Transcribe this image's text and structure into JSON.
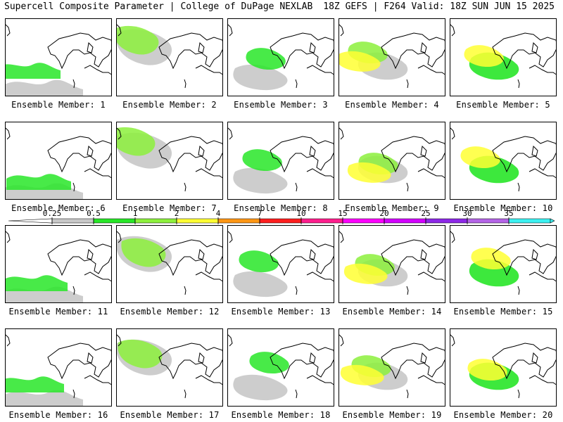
{
  "header": {
    "left": "Supercell Composite Parameter | College of DuPage NEXLAB",
    "right": "18Z GEFS | F264 Valid: 18Z SUN JUN 15 2025"
  },
  "panels": [
    {
      "label": "Ensemble Member: 1"
    },
    {
      "label": "Ensemble Member: 2"
    },
    {
      "label": "Ensemble Member: 3"
    },
    {
      "label": "Ensemble Member: 4"
    },
    {
      "label": "Ensemble Member: 5"
    },
    {
      "label": "Ensemble Member: 6"
    },
    {
      "label": "Ensemble Member: 7"
    },
    {
      "label": "Ensemble Member: 8"
    },
    {
      "label": "Ensemble Member: 9"
    },
    {
      "label": "Ensemble Member: 10"
    },
    {
      "label": "Ensemble Member: 11"
    },
    {
      "label": "Ensemble Member: 12"
    },
    {
      "label": "Ensemble Member: 13"
    },
    {
      "label": "Ensemble Member: 14"
    },
    {
      "label": "Ensemble Member: 15"
    },
    {
      "label": "Ensemble Member: 16"
    },
    {
      "label": "Ensemble Member: 17"
    },
    {
      "label": "Ensemble Member: 18"
    },
    {
      "label": "Ensemble Member: 19"
    },
    {
      "label": "Ensemble Member: 20"
    }
  ],
  "colorbar": {
    "ticks": [
      "0.25",
      "0.5",
      "1",
      "2",
      "4",
      "7",
      "10",
      "15",
      "20",
      "25",
      "30",
      "35"
    ],
    "colors": [
      "#c8c8c8",
      "#28e628",
      "#8cf03c",
      "#ffff32",
      "#ff9614",
      "#ff1e1e",
      "#ff1e8c",
      "#ff00ff",
      "#d200ff",
      "#8c28e6",
      "#b464e6",
      "#3cf0f0"
    ]
  }
}
